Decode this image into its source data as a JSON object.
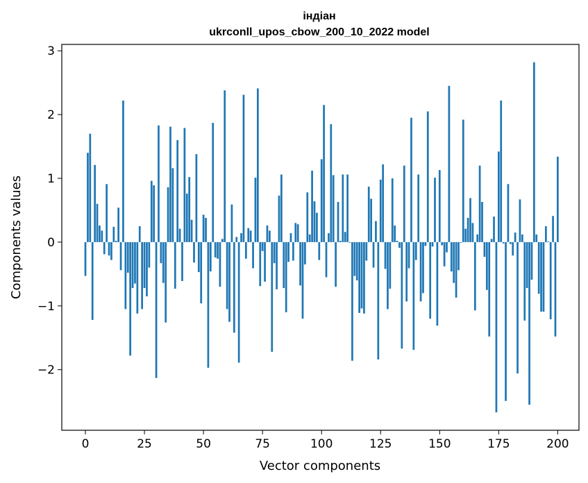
{
  "chart_data": {
    "type": "bar",
    "title_line1": "індіан",
    "title_line2": "ukrconll_upos_cbow_200_10_2022 model",
    "xlabel": "Vector components",
    "ylabel": "Components values",
    "xlim": [
      -10,
      209
    ],
    "ylim": [
      -2.95,
      3.1
    ],
    "xticks": [
      0,
      25,
      50,
      75,
      100,
      125,
      150,
      175,
      200
    ],
    "xtick_labels": [
      "0",
      "25",
      "50",
      "75",
      "100",
      "125",
      "150",
      "175",
      "200"
    ],
    "yticks": [
      -2,
      -1,
      0,
      1,
      2,
      3
    ],
    "ytick_labels": [
      "−2",
      "−1",
      "0",
      "1",
      "2",
      "3"
    ],
    "grid": false,
    "bar_color": "#1f77b4",
    "values": [
      -0.53,
      1.4,
      1.7,
      -1.22,
      1.21,
      0.6,
      0.26,
      0.18,
      -0.19,
      0.91,
      -0.21,
      -0.28,
      0.24,
      0.02,
      0.54,
      -0.44,
      2.22,
      -1.05,
      -0.48,
      -1.78,
      -0.72,
      -0.65,
      -1.12,
      0.25,
      -1.05,
      -0.72,
      -0.85,
      -0.4,
      0.96,
      0.89,
      -2.13,
      1.83,
      -0.33,
      -0.64,
      -1.26,
      0.86,
      1.81,
      1.16,
      -0.73,
      1.6,
      0.21,
      -0.61,
      1.79,
      0.76,
      1.02,
      0.35,
      -0.32,
      1.38,
      -0.47,
      -0.96,
      0.43,
      0.38,
      -1.97,
      -0.46,
      1.87,
      -0.24,
      -0.26,
      -0.7,
      0.05,
      2.38,
      -1.05,
      -1.25,
      0.59,
      -1.42,
      0.08,
      -1.89,
      0.14,
      2.31,
      -0.26,
      0.22,
      0.18,
      -0.41,
      1.01,
      2.41,
      -0.69,
      -0.14,
      -0.62,
      0.26,
      0.18,
      -1.72,
      -0.33,
      -0.74,
      0.73,
      1.06,
      -0.72,
      -1.1,
      -0.31,
      0.14,
      -0.29,
      0.3,
      0.28,
      -0.68,
      -1.2,
      -0.35,
      0.78,
      0.12,
      1.12,
      0.64,
      0.46,
      -0.28,
      1.3,
      2.15,
      -0.55,
      0.14,
      1.85,
      1.05,
      -0.7,
      0.63,
      0.02,
      1.06,
      0.16,
      1.06,
      -0.01,
      -1.86,
      -0.53,
      -0.6,
      -1.11,
      -1.04,
      -1.12,
      -0.29,
      0.87,
      0.68,
      -0.4,
      0.33,
      -1.84,
      0.98,
      1.22,
      -0.42,
      -1.05,
      -0.73,
      1.0,
      0.26,
      0.02,
      -0.09,
      -1.67,
      1.2,
      -0.93,
      -0.41,
      1.95,
      -1.69,
      -0.28,
      1.06,
      -0.93,
      -0.8,
      -0.06,
      2.05,
      -1.2,
      -0.07,
      1.01,
      -1.31,
      1.13,
      -0.05,
      -0.38,
      -0.16,
      2.45,
      -0.46,
      -0.64,
      -0.87,
      -0.44,
      -0.01,
      1.92,
      0.21,
      0.38,
      0.69,
      0.3,
      -1.07,
      0.12,
      1.2,
      0.63,
      -0.23,
      -0.75,
      -1.48,
      0.05,
      0.4,
      -2.67,
      1.42,
      2.22,
      -0.02,
      -2.49,
      0.91,
      -0.03,
      -0.21,
      0.15,
      -2.06,
      0.67,
      0.12,
      -1.23,
      -0.72,
      -2.55,
      -0.59,
      2.82,
      0.12,
      -0.81,
      -1.09,
      -1.09,
      0.25,
      0.01,
      -1.21,
      0.41,
      -1.48,
      1.34
    ]
  }
}
